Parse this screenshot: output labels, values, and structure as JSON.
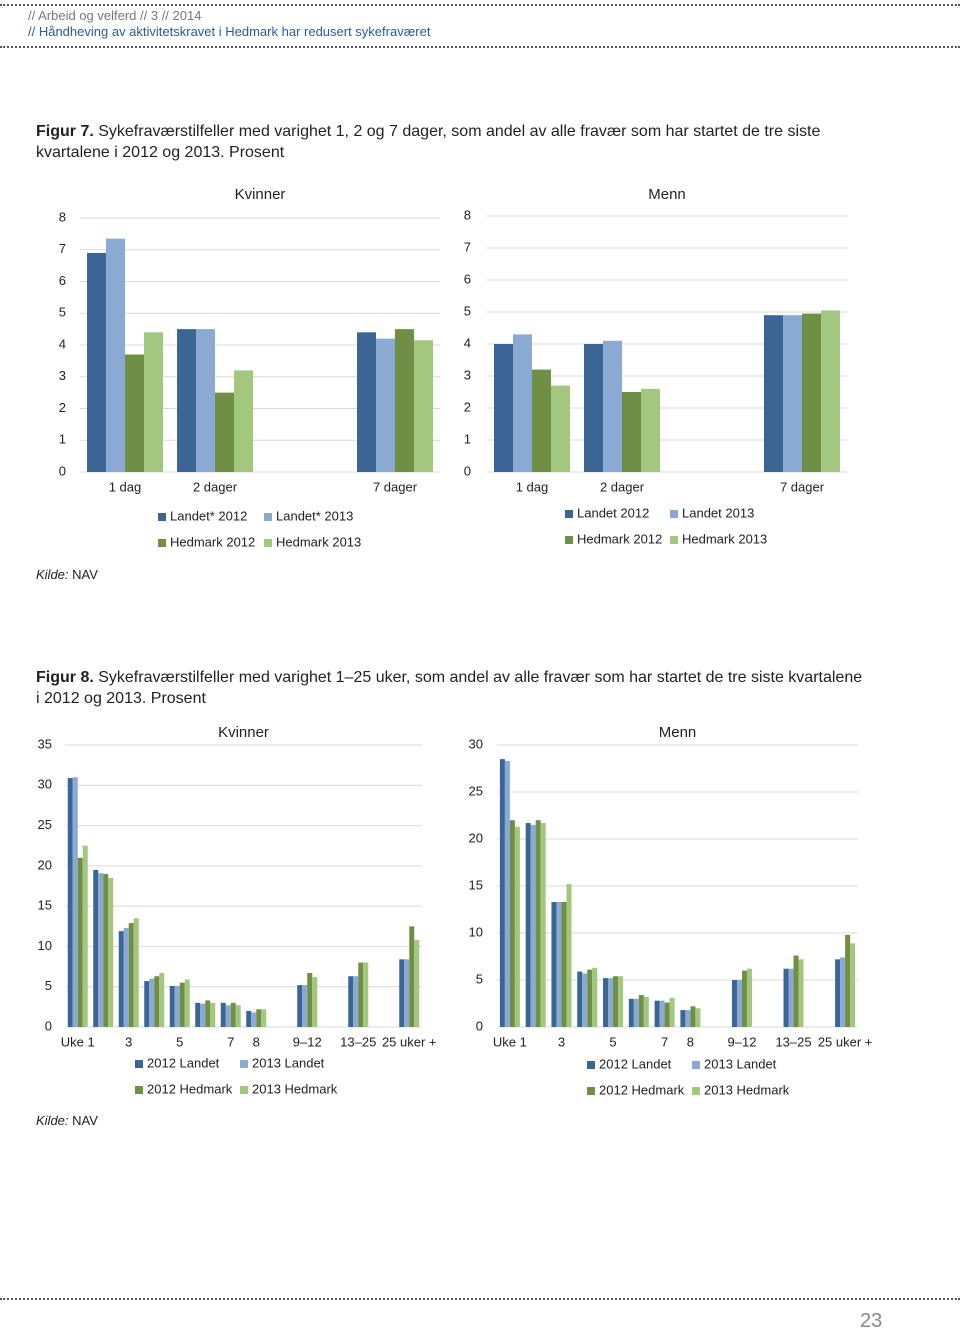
{
  "header": {
    "line1": "// Arbeid og velferd // 3 // 2014",
    "line2": "// Håndheving av aktivitetskravet i Hedmark har redusert sykefraværet"
  },
  "figure7": {
    "label": "Figur 7.",
    "caption": "Sykefraværstilfeller med varighet 1, 2 og 7 dager, som andel av alle fravær som har startet de tre siste kvartalene i 2012 og 2013. Prosent",
    "source_label": "Kilde:",
    "source": "NAV"
  },
  "figure8": {
    "label": "Figur 8.",
    "caption": "Sykefraværstilfeller med varighet 1–25 uker, som andel av alle fravær som har startet de tre siste kvartalene i 2012 og 2013. Prosent",
    "source_label": "Kilde:",
    "source": "NAV"
  },
  "page_number": "23",
  "chart_data": [
    {
      "type": "bar",
      "title": "Kvinner",
      "categories": [
        "1 dag",
        "2 dager",
        null,
        "7 dager"
      ],
      "series": [
        {
          "name": "Landet* 2012",
          "color": "#3a6594",
          "values": [
            6.9,
            4.5,
            null,
            4.4
          ]
        },
        {
          "name": "Landet* 2013",
          "color": "#8aaad4",
          "values": [
            7.35,
            4.5,
            null,
            4.2
          ]
        },
        {
          "name": "Hedmark 2012",
          "color": "#6f8f45",
          "values": [
            3.7,
            2.5,
            null,
            4.5
          ]
        },
        {
          "name": "Hedmark 2013",
          "color": "#a3c77e",
          "values": [
            4.4,
            3.2,
            null,
            4.15
          ]
        }
      ],
      "ylim": [
        0,
        8
      ],
      "yticks": [
        0,
        1,
        2,
        3,
        4,
        5,
        6,
        7,
        8
      ],
      "grid": true,
      "legend": "bottom"
    },
    {
      "type": "bar",
      "title": "Menn",
      "categories": [
        "1 dag",
        "2 dager",
        null,
        "7 dager"
      ],
      "series": [
        {
          "name": "Landet 2012",
          "color": "#3a6594",
          "values": [
            4.0,
            4.0,
            null,
            4.9
          ]
        },
        {
          "name": "Landet 2013",
          "color": "#8aaad4",
          "values": [
            4.3,
            4.1,
            null,
            4.9
          ]
        },
        {
          "name": "Hedmark 2012",
          "color": "#6f8f45",
          "values": [
            3.2,
            2.5,
            null,
            4.95
          ]
        },
        {
          "name": "Hedmark 2013",
          "color": "#a3c77e",
          "values": [
            2.7,
            2.6,
            null,
            5.05
          ]
        }
      ],
      "ylim": [
        0,
        8
      ],
      "yticks": [
        0,
        1,
        2,
        3,
        4,
        5,
        6,
        7,
        8
      ],
      "grid": true,
      "legend": "bottom"
    },
    {
      "type": "bar",
      "title": "Kvinner",
      "categories": [
        "Uke 1",
        null,
        "3",
        null,
        "5",
        null,
        "7",
        "8",
        null,
        "9–12",
        null,
        "13–25",
        null,
        "25 uker +"
      ],
      "series": [
        {
          "name": "2012 Landet",
          "color": "#3a6594",
          "values": [
            30.9,
            19.5,
            11.9,
            5.7,
            5.1,
            3.0,
            3.0,
            2.0,
            null,
            5.2,
            null,
            6.3,
            null,
            8.4
          ]
        },
        {
          "name": "2013 Landet",
          "color": "#8aaad4",
          "values": [
            31.0,
            19.1,
            12.3,
            6.0,
            5.1,
            2.9,
            2.7,
            1.8,
            null,
            5.2,
            null,
            6.3,
            null,
            8.4
          ]
        },
        {
          "name": "2012 Hedmark",
          "color": "#6f8f45",
          "values": [
            21.0,
            19.0,
            12.9,
            6.3,
            5.5,
            3.3,
            3.0,
            2.2,
            null,
            6.7,
            null,
            8.0,
            null,
            12.5
          ]
        },
        {
          "name": "2013 Hedmark",
          "color": "#a3c77e",
          "values": [
            22.5,
            18.5,
            13.5,
            6.7,
            5.9,
            3.0,
            2.7,
            2.2,
            null,
            6.2,
            null,
            8.0,
            null,
            10.8
          ]
        }
      ],
      "ylim": [
        0,
        35
      ],
      "yticks": [
        0,
        5,
        10,
        15,
        20,
        25,
        30,
        35
      ],
      "grid": true,
      "legend": "bottom"
    },
    {
      "type": "bar",
      "title": "Menn",
      "categories": [
        "Uke 1",
        null,
        "3",
        null,
        "5",
        null,
        "7",
        "8",
        null,
        "9–12",
        null,
        "13–25",
        null,
        "25 uker +"
      ],
      "series": [
        {
          "name": "2012 Landet",
          "color": "#3a6594",
          "values": [
            28.5,
            21.7,
            13.3,
            5.9,
            5.2,
            3.0,
            2.8,
            1.8,
            null,
            5.0,
            null,
            6.2,
            null,
            7.2
          ]
        },
        {
          "name": "2013 Landet",
          "color": "#8aaad4",
          "values": [
            28.3,
            21.5,
            13.3,
            5.7,
            5.2,
            3.0,
            2.8,
            1.8,
            null,
            5.0,
            null,
            6.2,
            null,
            7.4
          ]
        },
        {
          "name": "2012 Hedmark",
          "color": "#6f8f45",
          "values": [
            22.0,
            22.0,
            13.3,
            6.1,
            5.4,
            3.4,
            2.6,
            2.2,
            null,
            6.0,
            null,
            7.6,
            null,
            9.8
          ]
        },
        {
          "name": "2013 Hedmark",
          "color": "#a3c77e",
          "values": [
            21.3,
            21.7,
            15.2,
            6.3,
            5.4,
            3.2,
            3.1,
            2.0,
            null,
            6.2,
            null,
            7.2,
            null,
            8.9
          ]
        }
      ],
      "ylim": [
        0,
        30
      ],
      "yticks": [
        0,
        5,
        10,
        15,
        20,
        25,
        30
      ],
      "grid": true,
      "legend": "bottom"
    }
  ]
}
